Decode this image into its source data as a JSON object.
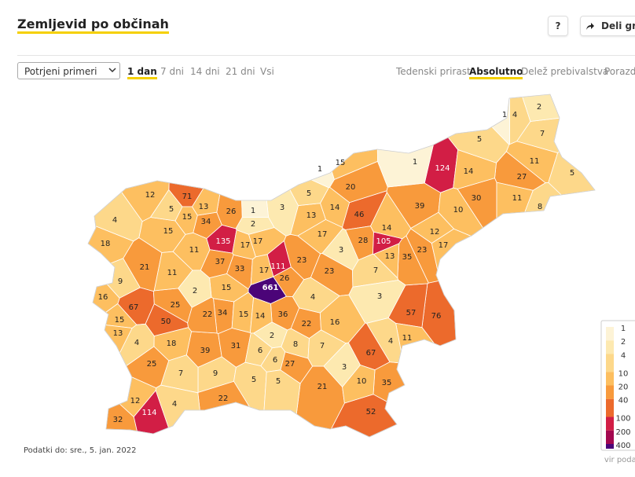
{
  "header": {
    "title": "Zemljevid po občinah",
    "help": "?",
    "share": "Deli graf"
  },
  "controls": {
    "measure": "Potrjeni primeri",
    "periods": [
      "1 dan",
      "7 dni",
      "14 dni",
      "21 dni",
      "Vsi"
    ],
    "active_period": 0,
    "views": [
      "Tedenski prirast",
      "Absolutno",
      "Delež prebivalstva",
      "Porazdelitev"
    ],
    "active_view": 1
  },
  "map": {
    "municipality_values": [
      661,
      135,
      124,
      114,
      111,
      105,
      76,
      71,
      67,
      67,
      57,
      52,
      50,
      46,
      39,
      39,
      37,
      36,
      35,
      35,
      34,
      34,
      33,
      32,
      31,
      30,
      28,
      27,
      27,
      26,
      26,
      25,
      25,
      23,
      23,
      23,
      22,
      22,
      22,
      21,
      21,
      20,
      18,
      18,
      17,
      17,
      17,
      17,
      17,
      16,
      16,
      15,
      15,
      15,
      15,
      15,
      15,
      14,
      14,
      14,
      14,
      13,
      13,
      13,
      13,
      12,
      12,
      12,
      11,
      11,
      11,
      11,
      11,
      10,
      10,
      9,
      9,
      8,
      8,
      7,
      7,
      7,
      7,
      6,
      6,
      5,
      5,
      5,
      5,
      5,
      5,
      4,
      4,
      4,
      4,
      4,
      4,
      3,
      3,
      3,
      3,
      2,
      2,
      2,
      2,
      1,
      1,
      1,
      1
    ]
  },
  "legend": {
    "ticks": [
      1,
      2,
      4,
      10,
      20,
      40,
      100,
      200,
      400
    ],
    "colors": [
      "#fdf3d6",
      "#fde9b0",
      "#fdd88a",
      "#fdbf60",
      "#f89a3c",
      "#ec6a2c",
      "#d21e45",
      "#a3084f",
      "#4b0478"
    ],
    "source": "vir podatkov"
  },
  "footer": "Podatki do: sre., 5. jan. 2022"
}
